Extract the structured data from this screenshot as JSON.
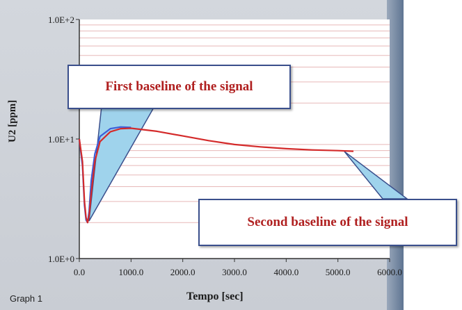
{
  "graph_label": "Graph 1",
  "callouts": [
    {
      "text": "First baseline of the signal"
    },
    {
      "text": "Second baseline of the signal"
    }
  ],
  "colors": {
    "curve_red": "#d42a2a",
    "curve_blue": "#3b5ed9",
    "callout_fill": "#9fd3ec",
    "gridline": "#e7b8b8"
  },
  "chart_data": {
    "type": "line",
    "xlabel": "Tempo [sec]",
    "ylabel": "U2 [ppm]",
    "xlim": [
      0,
      6000
    ],
    "ylim": [
      1,
      100
    ],
    "yscale": "log",
    "grid": true,
    "x_ticks": [
      {
        "value": 0,
        "label": "0.0"
      },
      {
        "value": 1000,
        "label": "1000.0"
      },
      {
        "value": 2000,
        "label": "2000.0"
      },
      {
        "value": 3000,
        "label": "3000.0"
      },
      {
        "value": 4000,
        "label": "4000.0"
      },
      {
        "value": 5000,
        "label": "5000.0"
      },
      {
        "value": 6000,
        "label": "6000.0"
      }
    ],
    "y_ticks": [
      {
        "value": 1,
        "label": "1.0E+0"
      },
      {
        "value": 10,
        "label": "1.0E+1"
      },
      {
        "value": 100,
        "label": "1.0E+2"
      }
    ],
    "series": [
      {
        "name": "",
        "color": "#d42a2a",
        "x": [
          0,
          60,
          100,
          130,
          160,
          190,
          230,
          300,
          400,
          600,
          800,
          1000,
          1500,
          2000,
          2500,
          3000,
          3500,
          4000,
          4500,
          5000,
          5300
        ],
        "y": [
          10,
          6.5,
          3,
          2.2,
          2.0,
          2.3,
          3.5,
          6.5,
          9.5,
          11.5,
          12.2,
          12.3,
          11.6,
          10.6,
          9.7,
          9.0,
          8.6,
          8.3,
          8.1,
          8.0,
          7.9
        ]
      },
      {
        "name": "",
        "color": "#3b5ed9",
        "x": [
          0,
          60,
          100,
          130,
          160,
          190,
          230,
          300,
          400,
          600,
          800,
          1000
        ],
        "y": [
          10,
          6.0,
          2.8,
          2.1,
          2.0,
          2.5,
          4.5,
          7.5,
          10.5,
          12.2,
          12.6,
          12.5
        ]
      }
    ]
  }
}
